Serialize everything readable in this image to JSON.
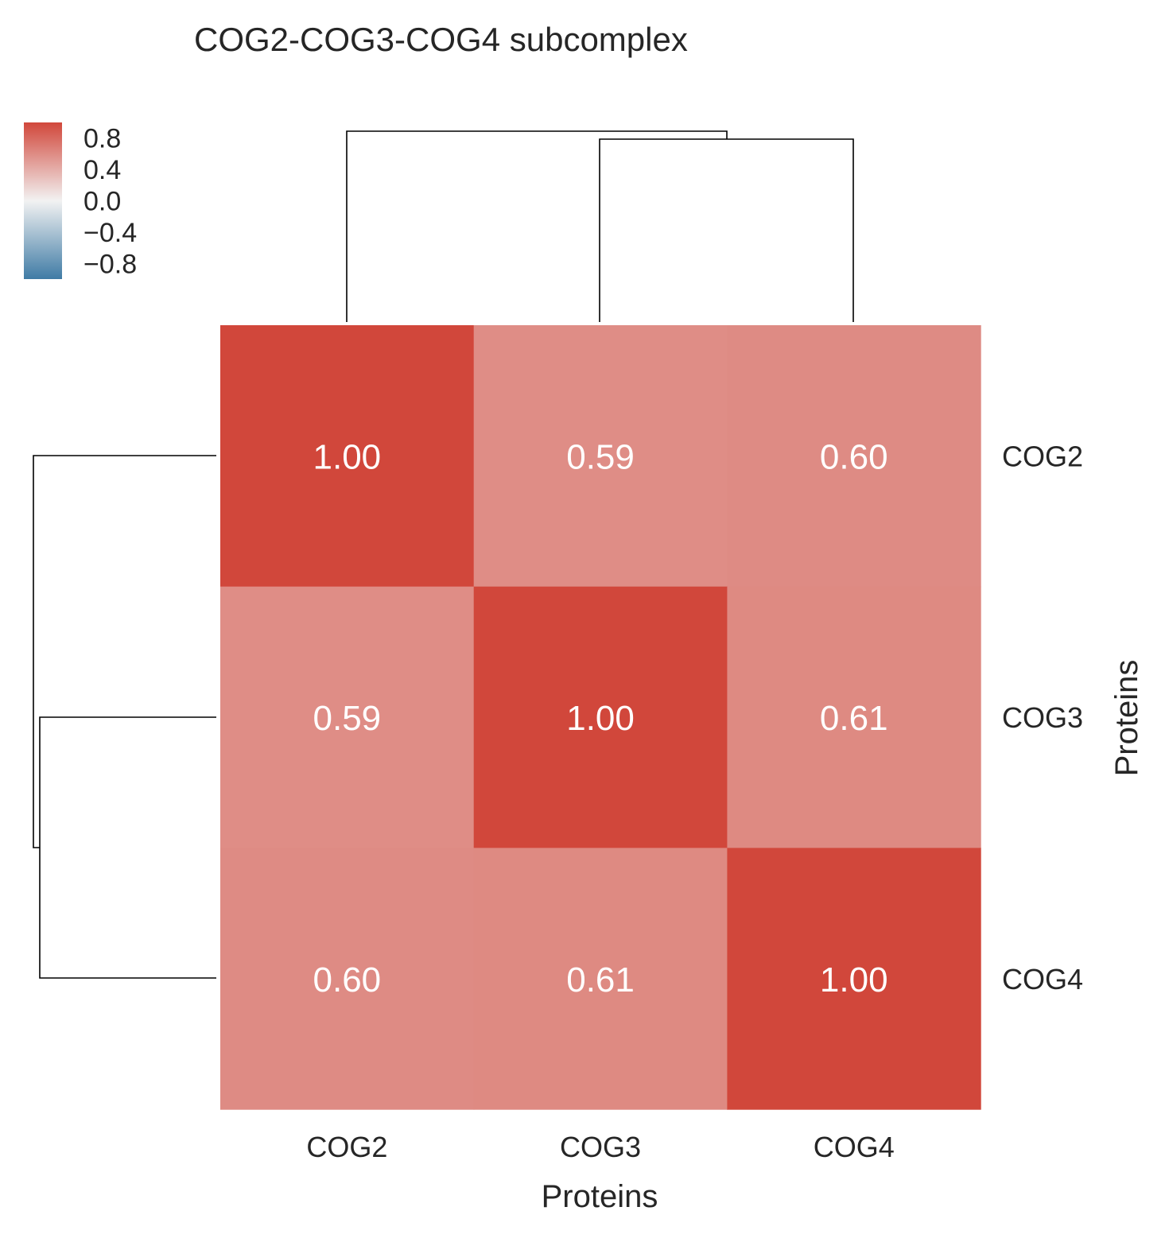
{
  "chart_data": {
    "type": "heatmap",
    "title": "COG2-COG3-COG4 subcomplex",
    "xlabel": "Proteins",
    "ylabel": "Proteins",
    "x_categories": [
      "COG2",
      "COG3",
      "COG4"
    ],
    "y_categories": [
      "COG2",
      "COG3",
      "COG4"
    ],
    "values": [
      [
        1.0,
        0.59,
        0.6
      ],
      [
        0.59,
        1.0,
        0.61
      ],
      [
        0.6,
        0.61,
        1.0
      ]
    ],
    "annotations": [
      [
        "1.00",
        "0.59",
        "0.60"
      ],
      [
        "0.59",
        "1.00",
        "0.61"
      ],
      [
        "0.60",
        "0.61",
        "1.00"
      ]
    ],
    "colorbar": {
      "range": [
        -1,
        1
      ],
      "ticks": [
        0.8,
        0.4,
        0.0,
        -0.4,
        -0.8
      ],
      "tick_labels": [
        "0.8",
        "0.4",
        "0.0",
        "−0.4",
        "−0.8"
      ],
      "colors": {
        "low": "#3f7ba5",
        "mid": "#f2f2f2",
        "high": "#d1473b"
      }
    },
    "dendrograms": {
      "top": true,
      "left": true
    }
  }
}
